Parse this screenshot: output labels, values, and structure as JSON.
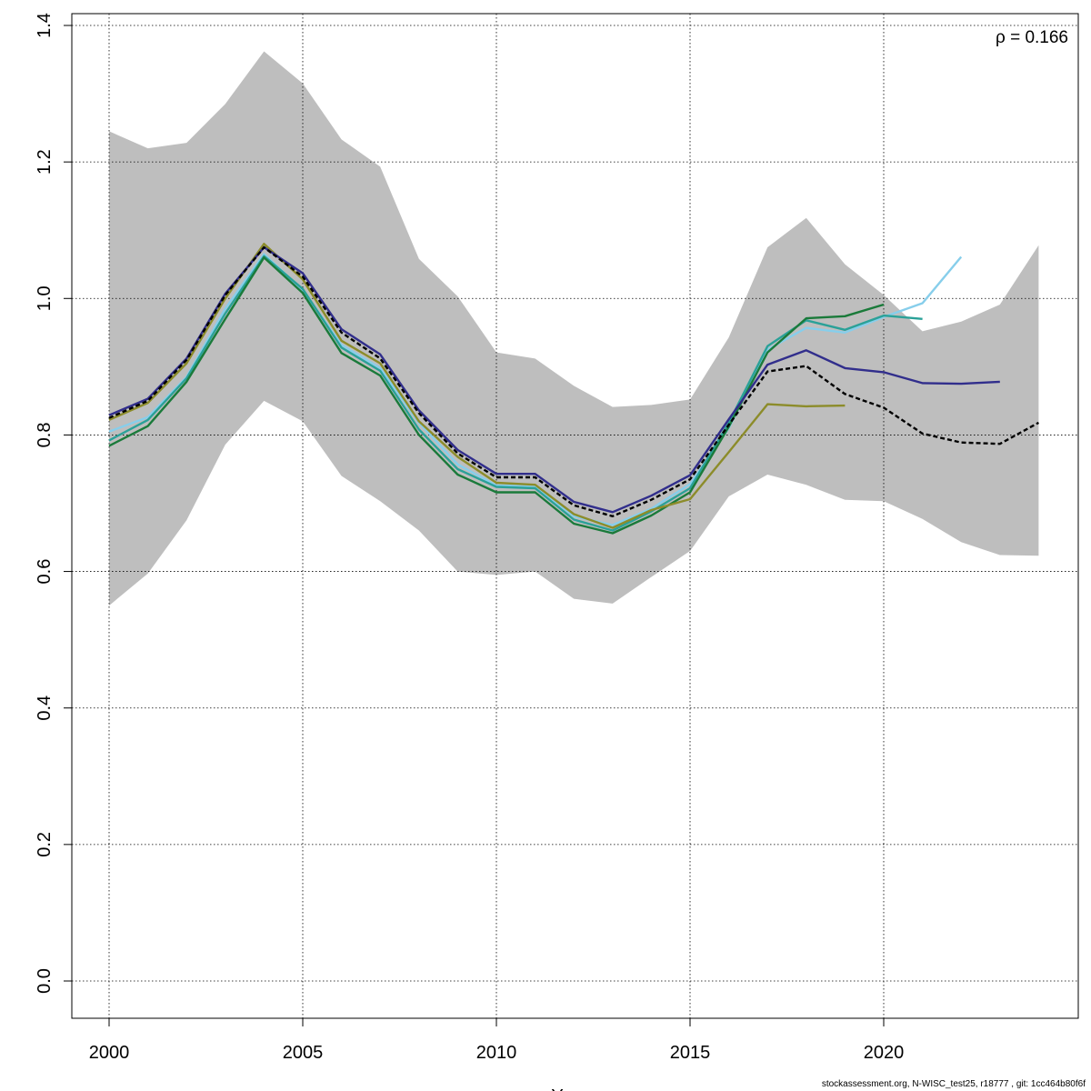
{
  "chart_data": {
    "type": "line",
    "title": "",
    "xlabel": "Y",
    "ylabel": "",
    "xlim": [
      2000,
      2024
    ],
    "ylim": [
      0,
      1.4
    ],
    "x_ticks": [
      "2000",
      "2005",
      "2010",
      "2015",
      "2020"
    ],
    "y_ticks": [
      "0.0",
      "0.2",
      "0.4",
      "0.6",
      "0.8",
      "1.0",
      "1.2",
      "1.4"
    ],
    "grid": true,
    "annotation": "ρ = 0.166",
    "band": {
      "color": "#bebebe",
      "x": [
        2000,
        2001,
        2002,
        2003,
        2004,
        2005,
        2006,
        2007,
        2008,
        2009,
        2010,
        2011,
        2012,
        2013,
        2014,
        2015,
        2016,
        2017,
        2018,
        2019,
        2020,
        2021,
        2022,
        2023,
        2024
      ],
      "upper": [
        1.245,
        1.22,
        1.228,
        1.285,
        1.362,
        1.315,
        1.233,
        1.193,
        1.058,
        1.003,
        0.921,
        0.912,
        0.872,
        0.841,
        0.844,
        0.852,
        0.943,
        1.075,
        1.118,
        1.05,
        1.005,
        0.952,
        0.966,
        0.991,
        1.078
      ],
      "lower": [
        0.55,
        0.597,
        0.675,
        0.786,
        0.85,
        0.82,
        0.74,
        0.703,
        0.66,
        0.6,
        0.595,
        0.6,
        0.56,
        0.553,
        0.592,
        0.63,
        0.71,
        0.742,
        0.727,
        0.705,
        0.703,
        0.677,
        0.643,
        0.624,
        0.623
      ]
    },
    "series": [
      {
        "color": "#000000",
        "dashed": true,
        "x": [
          2000,
          2001,
          2002,
          2003,
          2004,
          2005,
          2006,
          2007,
          2008,
          2009,
          2010,
          2011,
          2012,
          2013,
          2014,
          2015,
          2016,
          2017,
          2018,
          2019,
          2020,
          2021,
          2022,
          2023,
          2024
        ],
        "values": [
          0.825,
          0.85,
          0.91,
          1.005,
          1.075,
          1.032,
          0.95,
          0.912,
          0.832,
          0.773,
          0.738,
          0.738,
          0.697,
          0.681,
          0.705,
          0.735,
          0.815,
          0.893,
          0.901,
          0.86,
          0.84,
          0.802,
          0.789,
          0.787,
          0.818
        ]
      },
      {
        "color": "#87ceeb",
        "dashed": false,
        "x": [
          2000,
          2001,
          2002,
          2003,
          2004,
          2005,
          2006,
          2007,
          2008,
          2009,
          2010,
          2011,
          2012,
          2013,
          2014,
          2015,
          2016,
          2017,
          2018,
          2019,
          2020,
          2021,
          2022
        ],
        "values": [
          0.805,
          0.826,
          0.885,
          0.985,
          1.065,
          1.012,
          0.932,
          0.898,
          0.818,
          0.757,
          0.726,
          0.725,
          0.681,
          0.668,
          0.692,
          0.728,
          0.81,
          0.925,
          0.957,
          0.95,
          0.973,
          0.993,
          1.061
        ]
      },
      {
        "color": "#2aa198",
        "dashed": false,
        "x": [
          2000,
          2001,
          2002,
          2003,
          2004,
          2005,
          2006,
          2007,
          2008,
          2009,
          2010,
          2011,
          2012,
          2013,
          2014,
          2015,
          2016,
          2017,
          2018,
          2019,
          2020,
          2021
        ],
        "values": [
          0.792,
          0.822,
          0.883,
          0.978,
          1.062,
          1.014,
          0.928,
          0.894,
          0.808,
          0.75,
          0.724,
          0.722,
          0.676,
          0.66,
          0.688,
          0.722,
          0.818,
          0.93,
          0.968,
          0.954,
          0.975,
          0.97
        ]
      },
      {
        "color": "#1a7a3a",
        "dashed": false,
        "x": [
          2000,
          2001,
          2002,
          2003,
          2004,
          2005,
          2006,
          2007,
          2008,
          2009,
          2010,
          2011,
          2012,
          2013,
          2014,
          2015,
          2016,
          2017,
          2018,
          2019,
          2020
        ],
        "values": [
          0.784,
          0.813,
          0.878,
          0.97,
          1.06,
          1.008,
          0.92,
          0.887,
          0.8,
          0.742,
          0.716,
          0.716,
          0.67,
          0.656,
          0.682,
          0.716,
          0.812,
          0.921,
          0.971,
          0.974,
          0.991
        ]
      },
      {
        "color": "#8c8c2a",
        "dashed": false,
        "x": [
          2000,
          2001,
          2002,
          2003,
          2004,
          2005,
          2006,
          2007,
          2008,
          2009,
          2010,
          2011,
          2012,
          2013,
          2014,
          2015,
          2016,
          2017,
          2018,
          2019
        ],
        "values": [
          0.822,
          0.847,
          0.905,
          1.0,
          1.08,
          1.028,
          0.938,
          0.905,
          0.82,
          0.768,
          0.73,
          0.727,
          0.684,
          0.664,
          0.69,
          0.706,
          0.775,
          0.845,
          0.842,
          0.843
        ]
      },
      {
        "color": "#312e8c",
        "dashed": false,
        "x": [
          2000,
          2001,
          2002,
          2003,
          2004,
          2005,
          2006,
          2007,
          2008,
          2009,
          2010,
          2011,
          2012,
          2013,
          2014,
          2015,
          2016,
          2017,
          2018,
          2019,
          2020,
          2021,
          2022,
          2023
        ],
        "values": [
          0.829,
          0.853,
          0.912,
          1.007,
          1.075,
          1.037,
          0.955,
          0.918,
          0.836,
          0.778,
          0.743,
          0.743,
          0.702,
          0.687,
          0.711,
          0.741,
          0.823,
          0.903,
          0.924,
          0.898,
          0.892,
          0.876,
          0.875,
          0.878
        ]
      }
    ]
  },
  "footer_text": "stockassessment.org, N-WISC_test25, r18777 , git: 1cc464b80f6f"
}
